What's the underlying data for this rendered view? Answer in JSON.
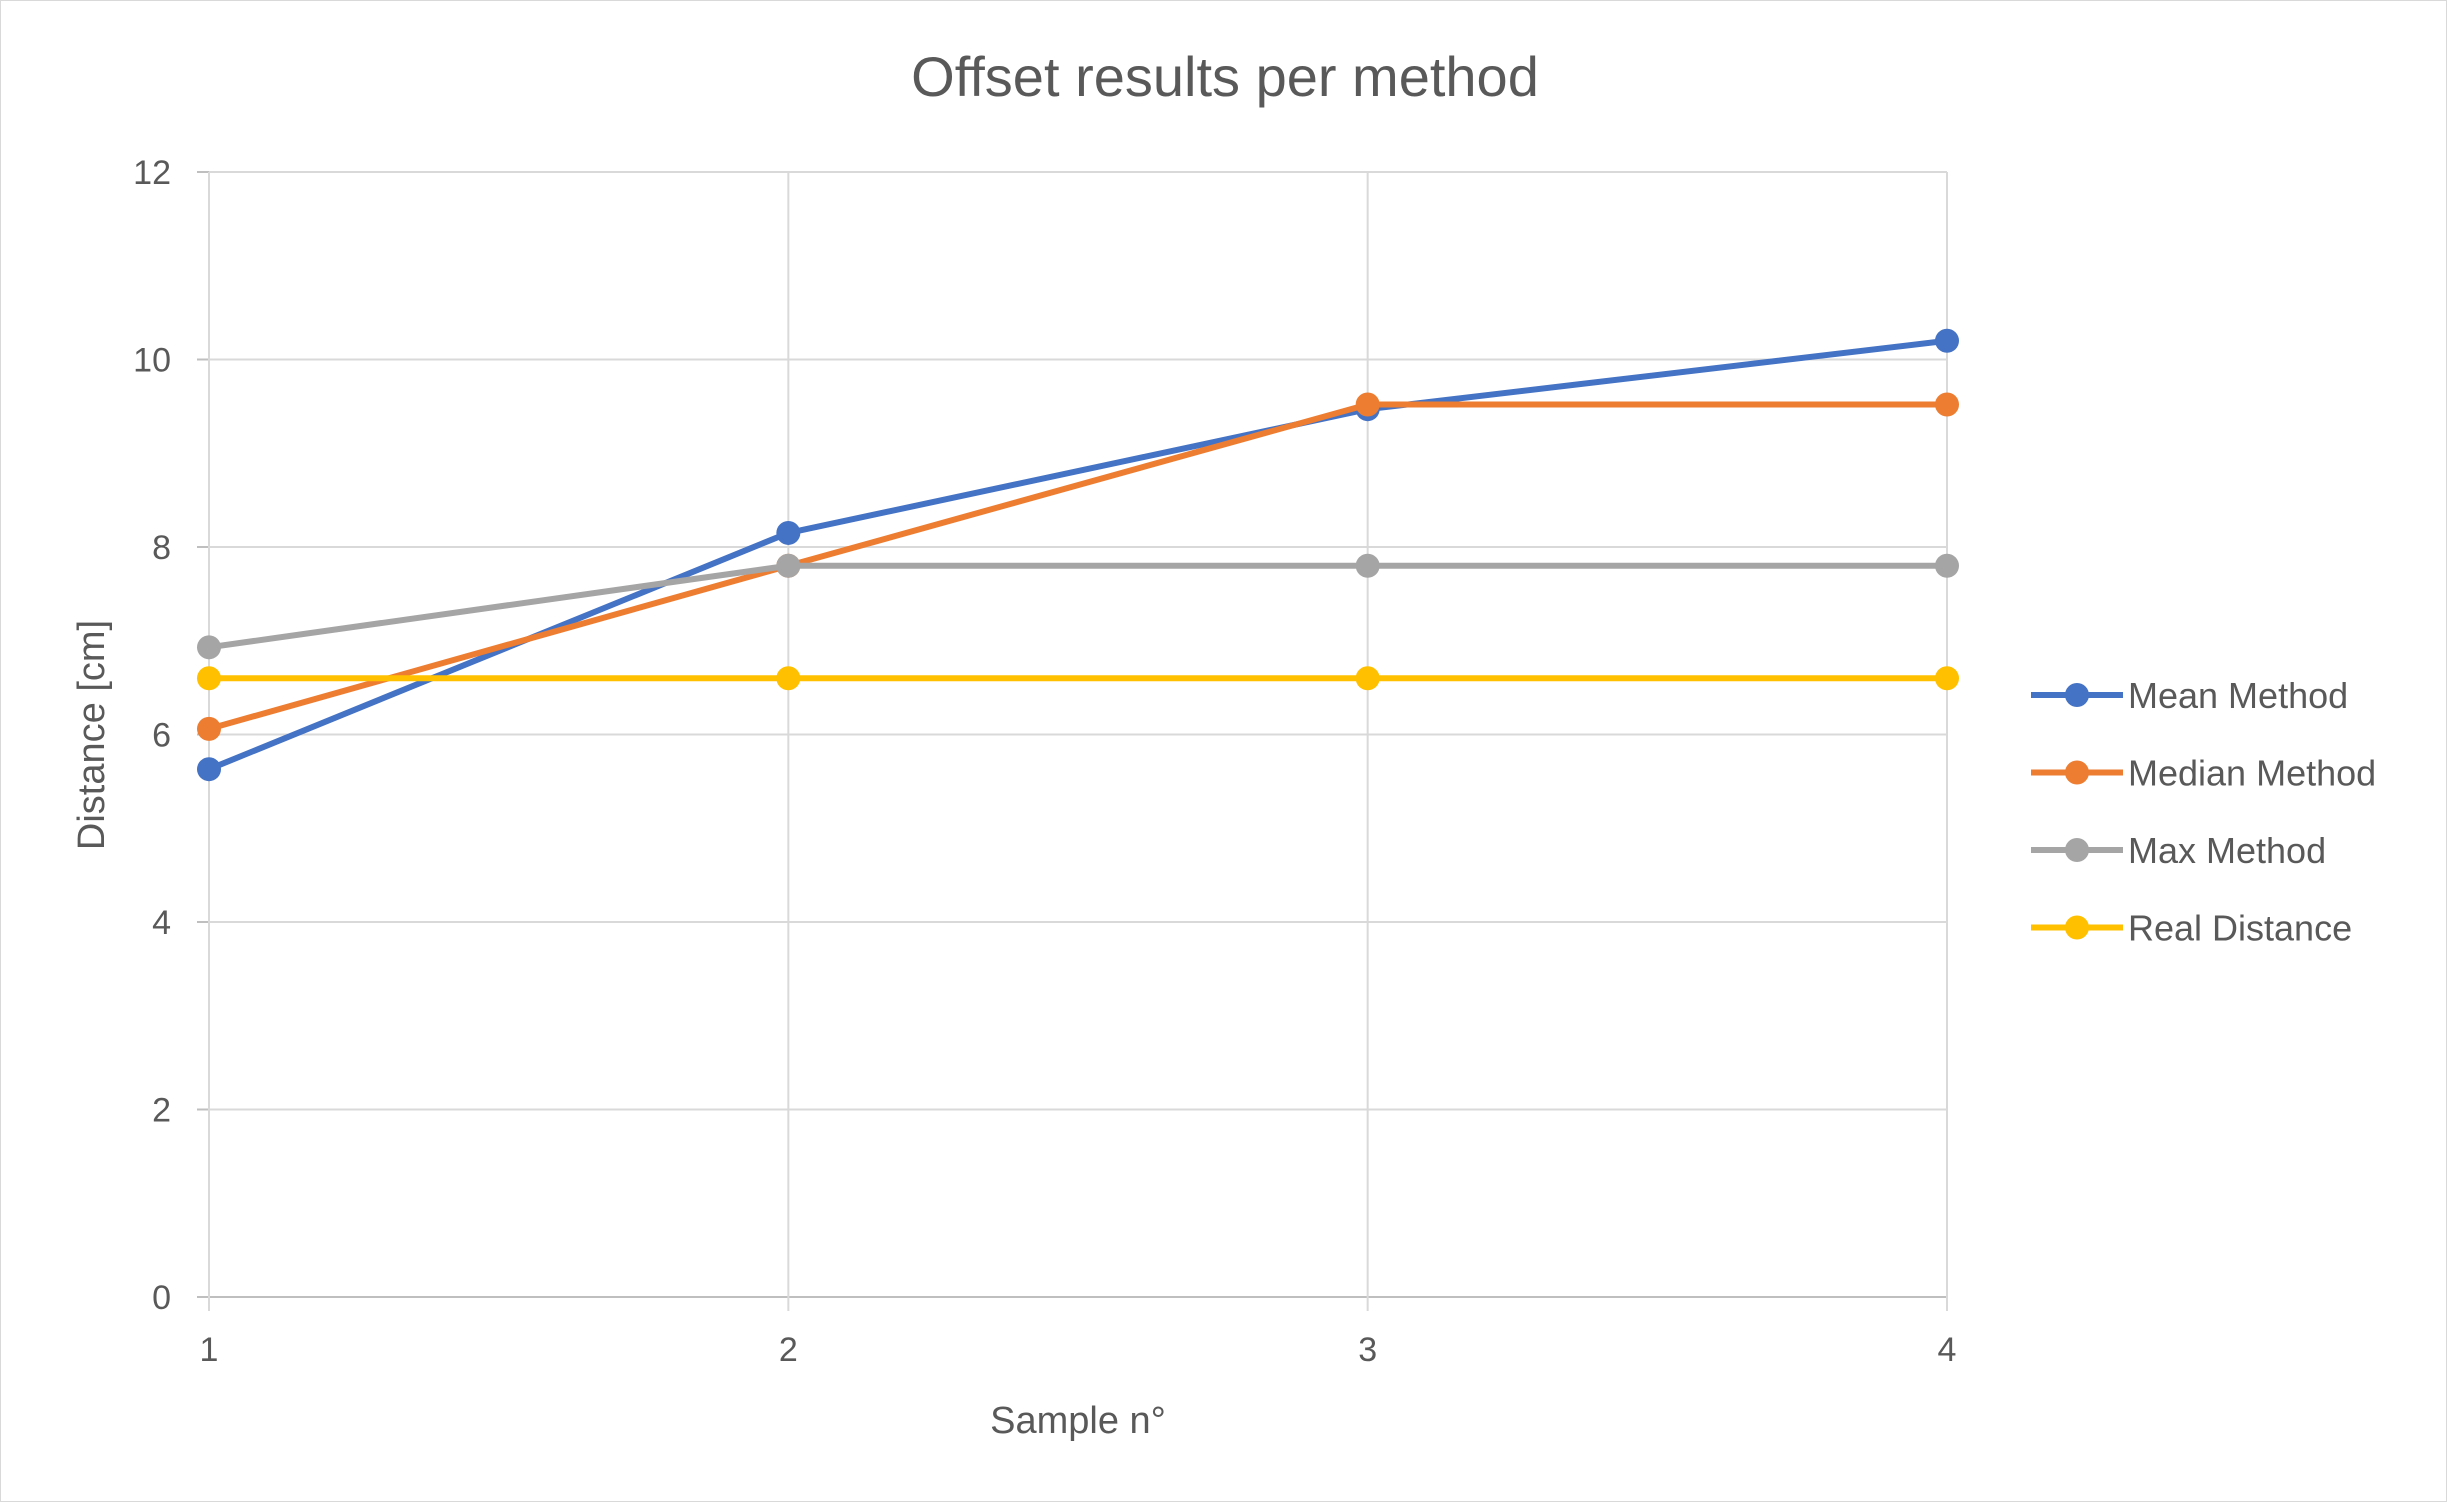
{
  "chart_data": {
    "type": "line",
    "title": "Offset results per method",
    "xlabel": "Sample n°",
    "ylabel": "Distance [cm]",
    "x": [
      1,
      2,
      3,
      4
    ],
    "x_tick_labels": [
      "1",
      "2",
      "3",
      "4"
    ],
    "ylim": [
      0,
      12
    ],
    "y_ticks": [
      0,
      2,
      4,
      6,
      8,
      10,
      12
    ],
    "grid": true,
    "legend_position": "right",
    "series": [
      {
        "name": "Mean Method",
        "color": "#4472c4",
        "values": [
          5.63,
          8.15,
          9.47,
          10.2
        ]
      },
      {
        "name": "Median Method",
        "color": "#ed7d31",
        "values": [
          6.06,
          7.8,
          9.52,
          9.52
        ]
      },
      {
        "name": "Max Method",
        "color": "#a5a5a5",
        "values": [
          6.93,
          7.8,
          7.8,
          7.8
        ]
      },
      {
        "name": "Real Distance",
        "color": "#ffc000",
        "values": [
          6.6,
          6.6,
          6.6,
          6.6
        ]
      }
    ]
  }
}
